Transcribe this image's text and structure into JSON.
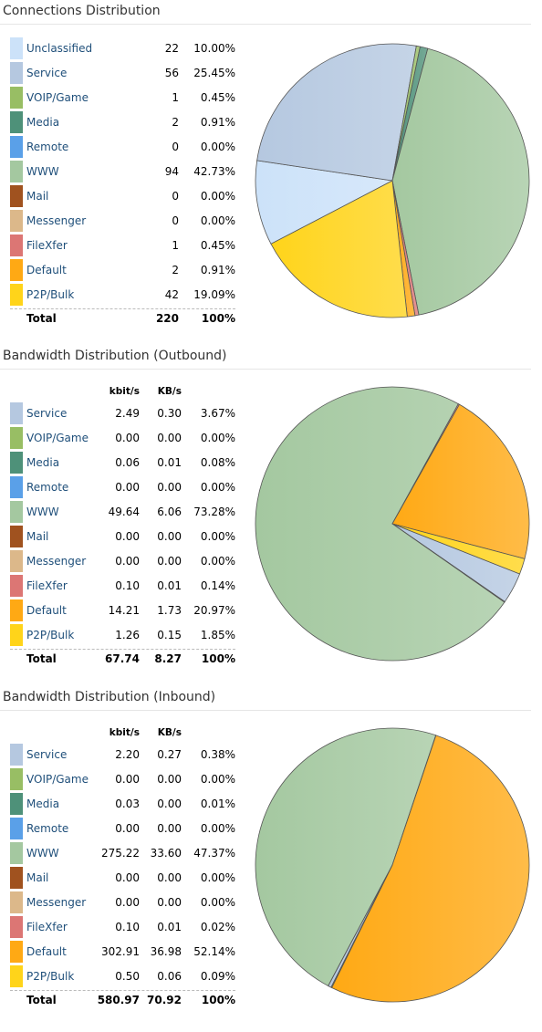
{
  "colors": {
    "Unclassified": "#cce2f9",
    "Service": "#b5c8e0",
    "VOIP/Game": "#98be64",
    "Media": "#4e9179",
    "Remote": "#5aa0e8",
    "WWW": "#a4c8a0",
    "Mail": "#a0521f",
    "Messenger": "#dcb88a",
    "FileXfer": "#dc7674",
    "Default": "#ffa914",
    "P2P/Bulk": "#ffd41a"
  },
  "chart_data": [
    {
      "type": "pie",
      "title": "Connections Distribution",
      "columns": [],
      "rows": [
        {
          "name": "Unclassified",
          "values": [
            "22",
            "10.00%"
          ],
          "pct": 10.0
        },
        {
          "name": "Service",
          "values": [
            "56",
            "25.45%"
          ],
          "pct": 25.45
        },
        {
          "name": "VOIP/Game",
          "values": [
            "1",
            "0.45%"
          ],
          "pct": 0.45
        },
        {
          "name": "Media",
          "values": [
            "2",
            "0.91%"
          ],
          "pct": 0.91
        },
        {
          "name": "Remote",
          "values": [
            "0",
            "0.00%"
          ],
          "pct": 0.0
        },
        {
          "name": "WWW",
          "values": [
            "94",
            "42.73%"
          ],
          "pct": 42.73
        },
        {
          "name": "Mail",
          "values": [
            "0",
            "0.00%"
          ],
          "pct": 0.0
        },
        {
          "name": "Messenger",
          "values": [
            "0",
            "0.00%"
          ],
          "pct": 0.0
        },
        {
          "name": "FileXfer",
          "values": [
            "1",
            "0.45%"
          ],
          "pct": 0.45
        },
        {
          "name": "Default",
          "values": [
            "2",
            "0.91%"
          ],
          "pct": 0.91
        },
        {
          "name": "P2P/Bulk",
          "values": [
            "42",
            "19.09%"
          ],
          "pct": 19.09
        }
      ],
      "total": {
        "label": "Total",
        "values": [
          "220",
          "100%"
        ]
      }
    },
    {
      "type": "pie",
      "title": "Bandwidth Distribution (Outbound)",
      "columns": [
        "kbit/s",
        "KB/s"
      ],
      "rows": [
        {
          "name": "Service",
          "values": [
            "2.49",
            "0.30",
            "3.67%"
          ],
          "pct": 3.67
        },
        {
          "name": "VOIP/Game",
          "values": [
            "0.00",
            "0.00",
            "0.00%"
          ],
          "pct": 0.0
        },
        {
          "name": "Media",
          "values": [
            "0.06",
            "0.01",
            "0.08%"
          ],
          "pct": 0.08
        },
        {
          "name": "Remote",
          "values": [
            "0.00",
            "0.00",
            "0.00%"
          ],
          "pct": 0.0
        },
        {
          "name": "WWW",
          "values": [
            "49.64",
            "6.06",
            "73.28%"
          ],
          "pct": 73.28
        },
        {
          "name": "Mail",
          "values": [
            "0.00",
            "0.00",
            "0.00%"
          ],
          "pct": 0.0
        },
        {
          "name": "Messenger",
          "values": [
            "0.00",
            "0.00",
            "0.00%"
          ],
          "pct": 0.0
        },
        {
          "name": "FileXfer",
          "values": [
            "0.10",
            "0.01",
            "0.14%"
          ],
          "pct": 0.14
        },
        {
          "name": "Default",
          "values": [
            "14.21",
            "1.73",
            "20.97%"
          ],
          "pct": 20.97
        },
        {
          "name": "P2P/Bulk",
          "values": [
            "1.26",
            "0.15",
            "1.85%"
          ],
          "pct": 1.85
        }
      ],
      "total": {
        "label": "Total",
        "values": [
          "67.74",
          "8.27",
          "100%"
        ]
      }
    },
    {
      "type": "pie",
      "title": "Bandwidth Distribution (Inbound)",
      "columns": [
        "kbit/s",
        "KB/s"
      ],
      "rows": [
        {
          "name": "Service",
          "values": [
            "2.20",
            "0.27",
            "0.38%"
          ],
          "pct": 0.38
        },
        {
          "name": "VOIP/Game",
          "values": [
            "0.00",
            "0.00",
            "0.00%"
          ],
          "pct": 0.0
        },
        {
          "name": "Media",
          "values": [
            "0.03",
            "0.00",
            "0.01%"
          ],
          "pct": 0.01
        },
        {
          "name": "Remote",
          "values": [
            "0.00",
            "0.00",
            "0.00%"
          ],
          "pct": 0.0
        },
        {
          "name": "WWW",
          "values": [
            "275.22",
            "33.60",
            "47.37%"
          ],
          "pct": 47.37
        },
        {
          "name": "Mail",
          "values": [
            "0.00",
            "0.00",
            "0.00%"
          ],
          "pct": 0.0
        },
        {
          "name": "Messenger",
          "values": [
            "0.00",
            "0.00",
            "0.00%"
          ],
          "pct": 0.0
        },
        {
          "name": "FileXfer",
          "values": [
            "0.10",
            "0.01",
            "0.02%"
          ],
          "pct": 0.02
        },
        {
          "name": "Default",
          "values": [
            "302.91",
            "36.98",
            "52.14%"
          ],
          "pct": 52.14
        },
        {
          "name": "P2P/Bulk",
          "values": [
            "0.50",
            "0.06",
            "0.09%"
          ],
          "pct": 0.09
        }
      ],
      "total": {
        "label": "Total",
        "values": [
          "580.97",
          "70.92",
          "100%"
        ]
      }
    }
  ]
}
